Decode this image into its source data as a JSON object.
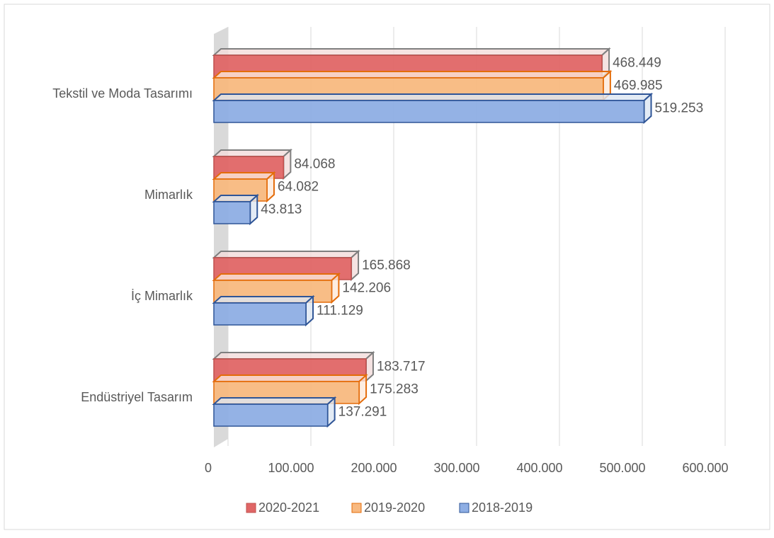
{
  "chart_data": {
    "type": "bar3d_horizontal",
    "categories": [
      "Tekstil ve Moda Tasarımı",
      "Mimarlık",
      "İç Mimarlık",
      "Endüstriyel Tasarım"
    ],
    "series": [
      {
        "name": "2020-2021",
        "color": "#e06666",
        "values": [
          468449,
          84068,
          165868,
          183717
        ],
        "value_labels": [
          "468.449",
          "84.068",
          "165.868",
          "183.717"
        ]
      },
      {
        "name": "2019-2020",
        "color": "#f8b980",
        "values": [
          469985,
          64082,
          142206,
          175283
        ],
        "value_labels": [
          "469.985",
          "64.082",
          "142.206",
          "175.283"
        ]
      },
      {
        "name": "2018-2019",
        "color": "#8eaee4",
        "values": [
          519253,
          43813,
          111129,
          137291
        ],
        "value_labels": [
          "519.253",
          "43.813",
          "111.129",
          "137.291"
        ]
      }
    ],
    "xlim": [
      0,
      600000
    ],
    "xticks": [
      0,
      {
        "value": 100000,
        "label": "100.000"
      },
      {
        "value": 200000,
        "label": "200.000"
      },
      {
        "value": 300000,
        "label": "300.000"
      },
      {
        "value": 400000,
        "label": "400.000"
      },
      {
        "value": 500000,
        "label": "500.000"
      },
      {
        "value": 600000,
        "label": "600.000"
      }
    ],
    "grid": true,
    "legend": "bottom"
  }
}
